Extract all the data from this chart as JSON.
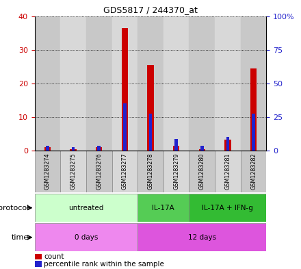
{
  "title": "GDS5817 / 244370_at",
  "samples": [
    "GSM1283274",
    "GSM1283275",
    "GSM1283276",
    "GSM1283277",
    "GSM1283278",
    "GSM1283279",
    "GSM1283280",
    "GSM1283281",
    "GSM1283282"
  ],
  "count_values": [
    1,
    0.5,
    1,
    36.5,
    25.5,
    1.5,
    0.5,
    3.2,
    24.5
  ],
  "percentile_values_left": [
    1.5,
    1,
    1.5,
    14,
    11,
    3.5,
    1.5,
    4.0,
    11
  ],
  "count_color": "#cc0000",
  "percentile_color": "#2222cc",
  "ylim_left": [
    0,
    40
  ],
  "ylim_right": [
    0,
    100
  ],
  "yticks_left": [
    0,
    10,
    20,
    30,
    40
  ],
  "yticks_right": [
    0,
    25,
    50,
    75,
    100
  ],
  "ytick_labels_left": [
    "0",
    "10",
    "20",
    "30",
    "40"
  ],
  "ytick_labels_right": [
    "0",
    "25",
    "50",
    "75",
    "100%"
  ],
  "protocol_groups": [
    {
      "label": "untreated",
      "start": 0,
      "end": 4,
      "color": "#ccffcc"
    },
    {
      "label": "IL-17A",
      "start": 4,
      "end": 6,
      "color": "#55cc55"
    },
    {
      "label": "IL-17A + IFN-g",
      "start": 6,
      "end": 9,
      "color": "#33bb33"
    }
  ],
  "time_groups": [
    {
      "label": "0 days",
      "start": 0,
      "end": 4,
      "color": "#ee88ee"
    },
    {
      "label": "12 days",
      "start": 4,
      "end": 9,
      "color": "#dd55dd"
    }
  ],
  "protocol_label": "protocol",
  "time_label": "time",
  "legend_count": "count",
  "legend_percentile": "percentile rank within the sample",
  "bg_color": "#ffffff",
  "plot_bg_color": "#ffffff",
  "sample_bg_even": "#c8c8c8",
  "sample_bg_odd": "#d8d8d8",
  "grid_color": "#000000"
}
